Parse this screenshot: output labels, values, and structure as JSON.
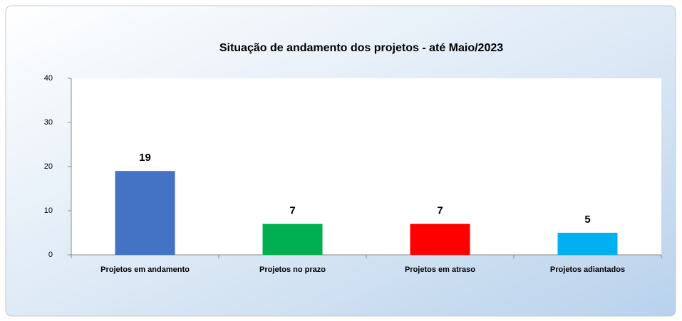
{
  "chart_data": {
    "type": "bar",
    "title": "Situação de andamento dos projetos - até Maio/2023",
    "categories": [
      "Projetos em andamento",
      "Projetos no prazo",
      "Projetos em atraso",
      "Projetos adiantados"
    ],
    "values": [
      19,
      7,
      7,
      5
    ],
    "colors": [
      "#4472c4",
      "#00b050",
      "#ff0000",
      "#00b0f0"
    ],
    "ylim": [
      0,
      40
    ],
    "yticks": [
      0,
      10,
      20,
      30,
      40
    ],
    "grid": false
  }
}
